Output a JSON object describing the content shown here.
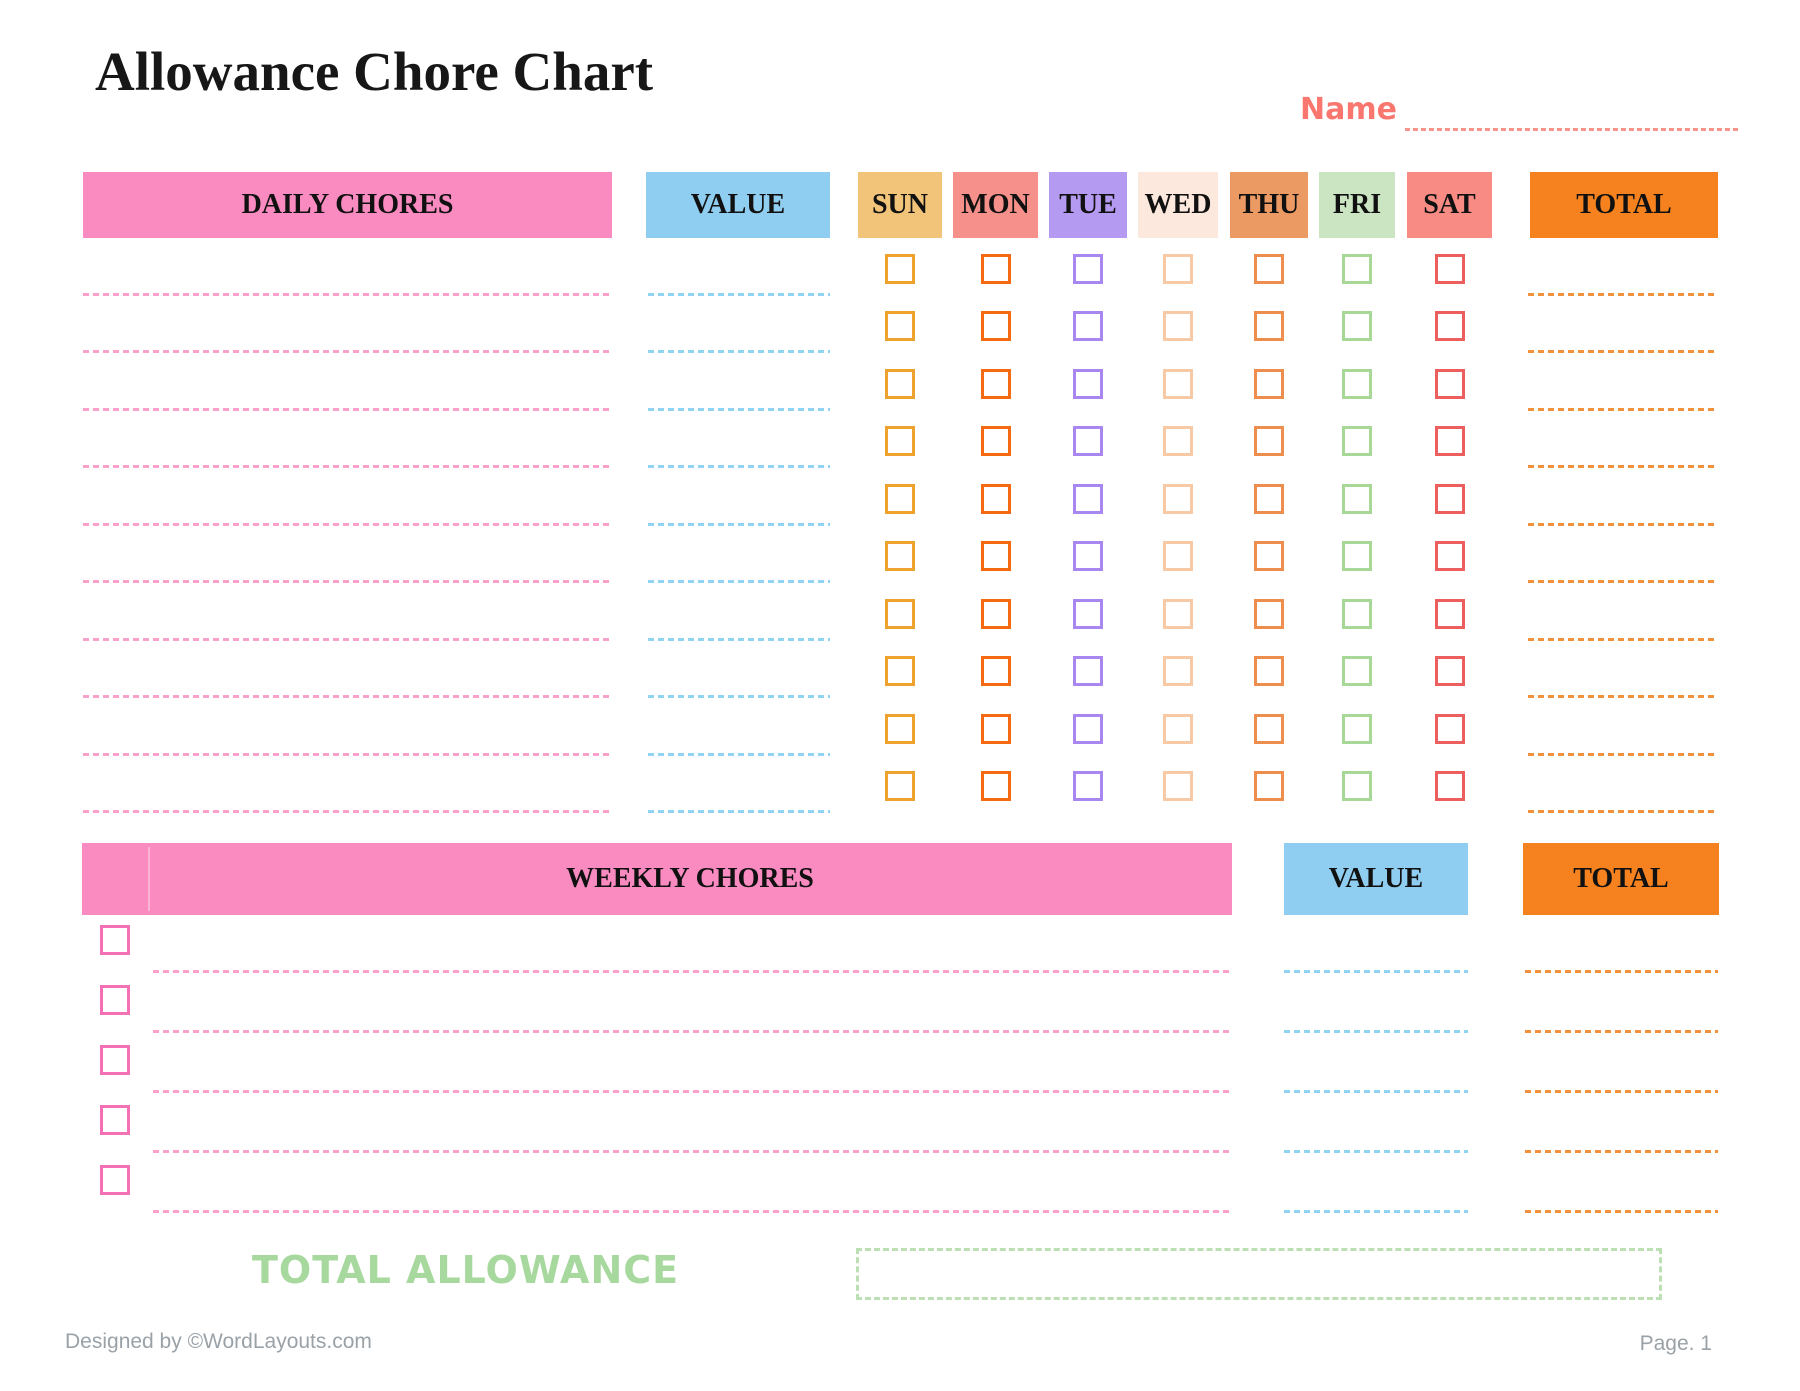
{
  "title": "Allowance Chore Chart",
  "name_field": {
    "label": "Name"
  },
  "daily": {
    "header": {
      "chores": "DAILY CHORES",
      "value": "VALUE",
      "total": "TOTAL"
    },
    "days": [
      {
        "label": "SUN",
        "header_bg": "#F2C479",
        "checkbox_color": "#EFA32F"
      },
      {
        "label": "MON",
        "header_bg": "#F5908A",
        "checkbox_color": "#F36A10"
      },
      {
        "label": "TUE",
        "header_bg": "#B49AF0",
        "checkbox_color": "#A888F0"
      },
      {
        "label": "WED",
        "header_bg": "#FCE8DC",
        "checkbox_color": "#F7C9A5"
      },
      {
        "label": "THU",
        "header_bg": "#EC9A63",
        "checkbox_color": "#EE8E4E"
      },
      {
        "label": "FRI",
        "header_bg": "#CBE5C3",
        "checkbox_color": "#A8D898"
      },
      {
        "label": "SAT",
        "header_bg": "#F88B84",
        "checkbox_color": "#ED5E5E"
      }
    ],
    "rows": 10
  },
  "weekly": {
    "header": {
      "chores": "WEEKLY CHORES",
      "value": "VALUE",
      "total": "TOTAL"
    },
    "rows": 5,
    "checkbox_color": "#F471B5"
  },
  "total_allowance": {
    "label": "TOTAL ALLOWANCE"
  },
  "footer": {
    "left": "Designed by ©WordLayouts.com",
    "right": "Page. 1"
  },
  "colors": {
    "header_pink": "#F98BC1",
    "header_blue": "#8FCEF1",
    "header_orange": "#F5821F",
    "name_coral": "#F9776E",
    "line_pink": "#F9A0CB",
    "line_blue": "#8FD4F2",
    "line_orange": "#F1913C",
    "name_line": "#F9948D",
    "allowance_green": "#A7D89E",
    "allowance_box_border": "#BCDFB4",
    "footer_gray": "#9AA2A8"
  }
}
